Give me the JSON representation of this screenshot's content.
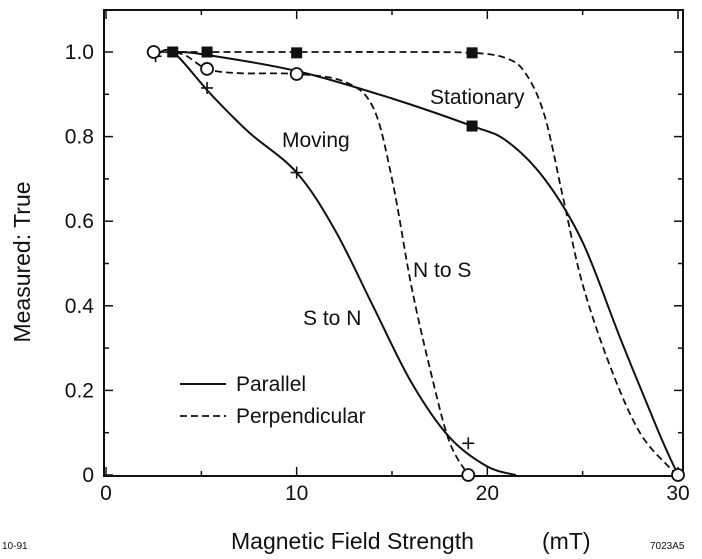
{
  "chart_data": {
    "type": "line",
    "title": "",
    "xlabel": "Magnetic Field Strength",
    "xunit": "(mT)",
    "ylabel": "Measured: True",
    "xlim": [
      0,
      30
    ],
    "ylim": [
      0,
      1.0
    ],
    "x_ticks": [
      0,
      10,
      20,
      30
    ],
    "x_tick_labels": [
      "0",
      "10",
      "20",
      "30"
    ],
    "y_ticks": [
      0,
      0.2,
      0.4,
      0.6,
      0.8,
      1.0
    ],
    "y_tick_labels": [
      "0",
      "0.2",
      "0.4",
      "0.6",
      "0.8",
      "1.0"
    ],
    "grid": false,
    "legend": {
      "placement": "bottom-left",
      "entries": [
        {
          "label": "Parallel",
          "style": "solid"
        },
        {
          "label": "Perpendicular",
          "style": "dashed"
        }
      ]
    },
    "series": [
      {
        "label": "Stationary",
        "style": "solid",
        "marker": "square",
        "curve": [
          [
            3.5,
            1.0
          ],
          [
            5,
            0.995
          ],
          [
            10,
            0.955
          ],
          [
            15,
            0.89
          ],
          [
            19.2,
            0.825
          ],
          [
            21,
            0.79
          ],
          [
            23,
            0.7
          ],
          [
            25,
            0.55
          ],
          [
            27,
            0.32
          ],
          [
            29,
            0.1
          ],
          [
            30,
            0.0
          ]
        ],
        "points": [
          [
            3.5,
            1.0
          ],
          [
            5.3,
            1.0
          ],
          [
            19.2,
            0.825
          ]
        ]
      },
      {
        "label": "Stationary",
        "style": "dashed",
        "marker": "square",
        "curve": [
          [
            2.7,
            1.0
          ],
          [
            10,
            1.0
          ],
          [
            15,
            1.0
          ],
          [
            19.2,
            0.998
          ],
          [
            21,
            0.985
          ],
          [
            22,
            0.95
          ],
          [
            23,
            0.85
          ],
          [
            24,
            0.65
          ],
          [
            25,
            0.45
          ],
          [
            26.5,
            0.25
          ],
          [
            28,
            0.1
          ],
          [
            29.5,
            0.02
          ],
          [
            30,
            0.0
          ]
        ],
        "points": [
          [
            10,
            0.998
          ],
          [
            19.2,
            0.998
          ]
        ]
      },
      {
        "label": "S to N",
        "style": "solid",
        "marker": "plus",
        "curve": [
          [
            2.6,
            0.99
          ],
          [
            3.5,
            1.0
          ],
          [
            5.5,
            0.9
          ],
          [
            7.5,
            0.81
          ],
          [
            10,
            0.715
          ],
          [
            12,
            0.58
          ],
          [
            14,
            0.4
          ],
          [
            16,
            0.22
          ],
          [
            18,
            0.09
          ],
          [
            20,
            0.02
          ],
          [
            21.5,
            0.0
          ]
        ],
        "points": [
          [
            2.6,
            0.99
          ],
          [
            5.3,
            0.915
          ],
          [
            10,
            0.715
          ],
          [
            19,
            0.075
          ]
        ]
      },
      {
        "label": "N to S",
        "style": "dashed",
        "marker": "circle",
        "curve": [
          [
            2.5,
            1.0
          ],
          [
            4,
            0.995
          ],
          [
            5.3,
            0.96
          ],
          [
            7,
            0.95
          ],
          [
            10,
            0.948
          ],
          [
            12.5,
            0.93
          ],
          [
            14,
            0.87
          ],
          [
            15,
            0.7
          ],
          [
            16,
            0.45
          ],
          [
            17,
            0.25
          ],
          [
            18,
            0.08
          ],
          [
            19,
            0.0
          ]
        ],
        "points": [
          [
            2.5,
            1.0
          ],
          [
            5.3,
            0.96
          ],
          [
            10,
            0.948
          ],
          [
            19,
            0.0
          ],
          [
            30,
            0.0
          ]
        ]
      }
    ],
    "annotations": [
      {
        "text": "Stationary"
      },
      {
        "text": "Moving"
      },
      {
        "text": "N to S"
      },
      {
        "text": "S to N"
      }
    ],
    "figure_notes": {
      "left": "10-91",
      "right": "7023A5"
    }
  }
}
